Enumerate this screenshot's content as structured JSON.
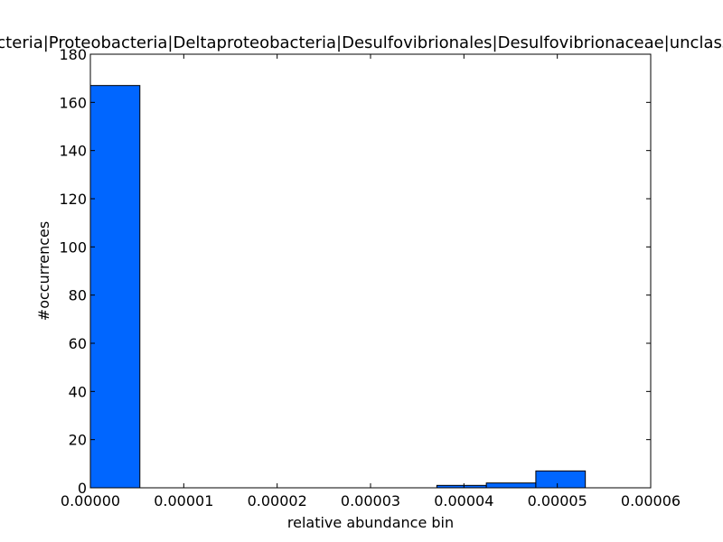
{
  "chart_data": {
    "type": "bar",
    "title": "Bacteria|Proteobacteria|Deltaproteobacteria|Desulfovibrionales|Desulfovibrionaceae|unclassified",
    "xlabel": "relative abundance bin",
    "ylabel": "#occurrences",
    "xlim": [
      0,
      6e-05
    ],
    "ylim": [
      0,
      180
    ],
    "xticks": [
      "0.00000",
      "0.00001",
      "0.00002",
      "0.00003",
      "0.00004",
      "0.00005",
      "0.00006"
    ],
    "yticks": [
      "0",
      "20",
      "40",
      "60",
      "80",
      "100",
      "120",
      "140",
      "160",
      "180"
    ],
    "bin_edges": [
      0,
      5.3e-06,
      1.06e-05,
      1.59e-05,
      2.12e-05,
      2.65e-05,
      3.18e-05,
      3.71e-05,
      4.24e-05,
      4.77e-05,
      5.3e-05
    ],
    "values": [
      167,
      0,
      0,
      0,
      0,
      0,
      0,
      1,
      2,
      7
    ],
    "bar_color": "#0066ff",
    "grid": false,
    "legend": "none"
  }
}
